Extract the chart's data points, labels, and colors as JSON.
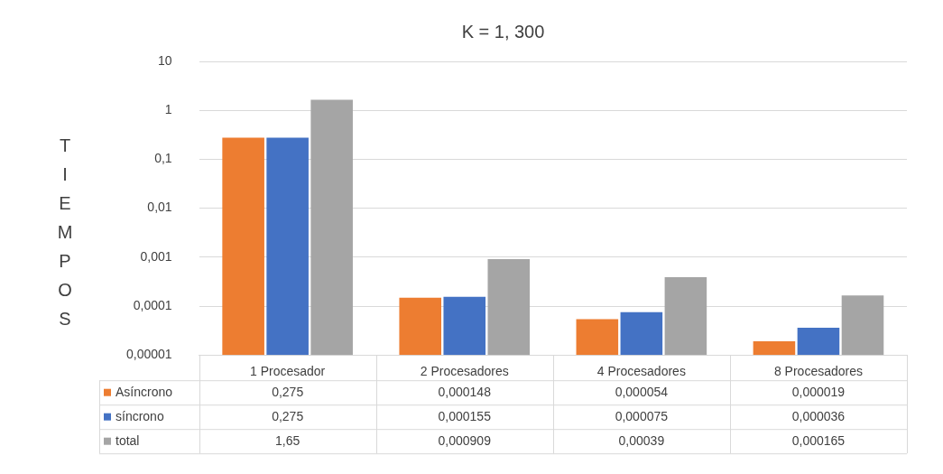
{
  "chart_data": {
    "type": "bar",
    "title": "K = 1, 300",
    "ylabel": "TIEMPOS",
    "categories": [
      "1 Procesador",
      "2 Procesadores",
      "4 Procesadores",
      "8 Procesadores"
    ],
    "series": [
      {
        "name": "Asíncrono",
        "color": "#ed7d31",
        "values": [
          0.275,
          0.000148,
          5.4e-05,
          1.9e-05
        ],
        "value_labels": [
          "0,275",
          "0,000148",
          "0,000054",
          "0,000019"
        ]
      },
      {
        "name": "síncrono",
        "color": "#4472c4",
        "values": [
          0.275,
          0.000155,
          7.5e-05,
          3.6e-05
        ],
        "value_labels": [
          "0,275",
          "0,000155",
          "0,000075",
          "0,000036"
        ]
      },
      {
        "name": "total",
        "color": "#a5a5a5",
        "values": [
          1.65,
          0.000909,
          0.00039,
          0.000165
        ],
        "value_labels": [
          "1,65",
          "0,000909",
          "0,00039",
          "0,000165"
        ]
      }
    ],
    "log": true,
    "ylim": [
      1e-05,
      10
    ],
    "yticks": [
      {
        "value": 1e-05,
        "label": "0,00001"
      },
      {
        "value": 0.0001,
        "label": "0,0001"
      },
      {
        "value": 0.001,
        "label": "0,001"
      },
      {
        "value": 0.01,
        "label": "0,01"
      },
      {
        "value": 0.1,
        "label": "0,1"
      },
      {
        "value": 1,
        "label": "1"
      },
      {
        "value": 10,
        "label": "10"
      }
    ],
    "grid": "y",
    "legend": "bottom"
  }
}
